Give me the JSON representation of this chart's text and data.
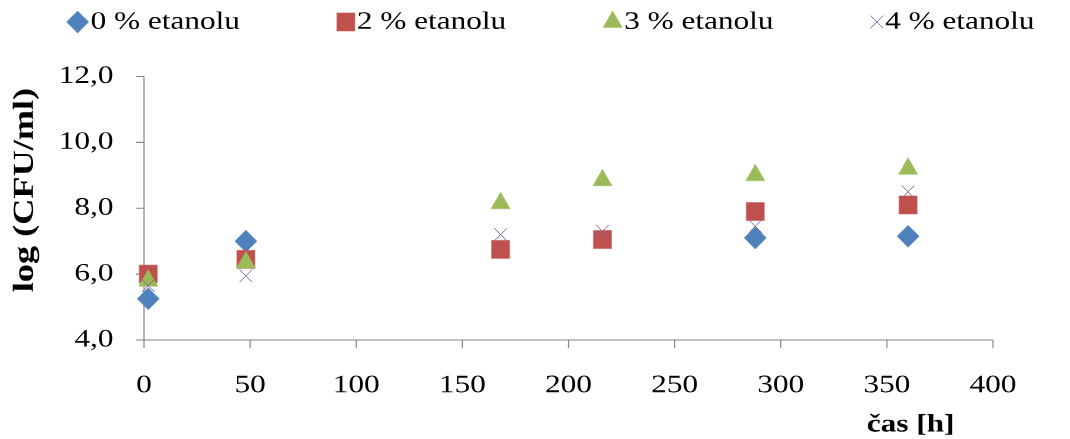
{
  "chart_data": {
    "type": "scatter",
    "xlabel": "čas [h]",
    "ylabel": "log (CFU/ml)",
    "xlim": [
      0,
      400
    ],
    "xticks": [
      0,
      50,
      100,
      150,
      200,
      250,
      300,
      350,
      400
    ],
    "ylim": [
      4,
      12
    ],
    "yticks": [
      {
        "value": 4,
        "label": "4,0"
      },
      {
        "value": 6,
        "label": "6,0"
      },
      {
        "value": 8,
        "label": "8,0"
      },
      {
        "value": 10,
        "label": "10,0"
      },
      {
        "value": 12,
        "label": "12,0"
      }
    ],
    "legend": "top",
    "x": [
      2,
      48,
      168,
      216,
      288,
      360
    ],
    "series": [
      {
        "name": "0 % etanolu",
        "color": "#4f81bd",
        "marker": "diamond",
        "values": [
          5.25,
          7.0,
          null,
          null,
          7.1,
          7.15
        ]
      },
      {
        "name": "2 % etanolu",
        "color": "#c0504d",
        "marker": "square",
        "values": [
          6.0,
          6.45,
          6.75,
          7.05,
          7.9,
          8.1
        ]
      },
      {
        "name": "3 % etanolu",
        "color": "#9bbb59",
        "marker": "triangle",
        "values": [
          5.8,
          6.35,
          8.15,
          8.85,
          9.0,
          9.2
        ]
      },
      {
        "name": "4 % etanolu",
        "color": "#8064a2",
        "marker": "cross",
        "values": [
          5.65,
          5.95,
          7.2,
          7.3,
          7.45,
          8.5
        ]
      }
    ]
  }
}
